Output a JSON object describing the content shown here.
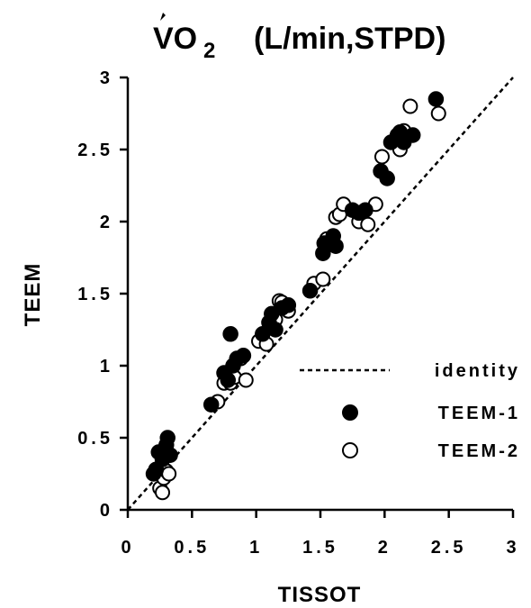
{
  "chart_data": {
    "type": "scatter",
    "title": "VO",
    "title_subscript": "2",
    "title_units": "(L/min,STPD)",
    "xlabel": "TISSOT",
    "ylabel": "TEEM",
    "xlim": [
      0,
      3
    ],
    "ylim": [
      0,
      3
    ],
    "x_ticks": [
      0,
      0.5,
      1,
      1.5,
      2,
      2.5,
      3
    ],
    "y_ticks": [
      0,
      0.5,
      1,
      1.5,
      2,
      2.5,
      3
    ],
    "x_tick_labels": [
      "0",
      "0.5",
      "1",
      "1.5",
      "2",
      "2.5",
      "3"
    ],
    "y_tick_labels": [
      "0",
      "0.5",
      "1",
      "1.5",
      "2",
      "2.5",
      "3"
    ],
    "grid": false,
    "legend_position": "bottom-right",
    "reference_line": {
      "name": "identity",
      "style": "dashed",
      "x": [
        0,
        3
      ],
      "y": [
        0,
        3
      ]
    },
    "series": [
      {
        "name": "TEEM-1",
        "marker": "filled-circle",
        "points": [
          [
            0.2,
            0.25
          ],
          [
            0.22,
            0.28
          ],
          [
            0.24,
            0.4
          ],
          [
            0.27,
            0.35
          ],
          [
            0.3,
            0.45
          ],
          [
            0.31,
            0.5
          ],
          [
            0.33,
            0.38
          ],
          [
            0.65,
            0.73
          ],
          [
            0.75,
            0.95
          ],
          [
            0.78,
            0.9
          ],
          [
            0.8,
            1.22
          ],
          [
            0.82,
            1.0
          ],
          [
            0.85,
            1.05
          ],
          [
            0.9,
            1.07
          ],
          [
            1.05,
            1.22
          ],
          [
            1.1,
            1.3
          ],
          [
            1.12,
            1.36
          ],
          [
            1.15,
            1.25
          ],
          [
            1.2,
            1.4
          ],
          [
            1.25,
            1.42
          ],
          [
            1.42,
            1.52
          ],
          [
            1.52,
            1.78
          ],
          [
            1.53,
            1.85
          ],
          [
            1.6,
            1.9
          ],
          [
            1.62,
            1.83
          ],
          [
            1.75,
            2.08
          ],
          [
            1.8,
            2.06
          ],
          [
            1.85,
            2.08
          ],
          [
            1.97,
            2.35
          ],
          [
            2.02,
            2.3
          ],
          [
            2.05,
            2.55
          ],
          [
            2.1,
            2.6
          ],
          [
            2.12,
            2.62
          ],
          [
            2.15,
            2.55
          ],
          [
            2.22,
            2.6
          ],
          [
            2.4,
            2.85
          ]
        ]
      },
      {
        "name": "TEEM-2",
        "marker": "open-circle",
        "points": [
          [
            0.25,
            0.15
          ],
          [
            0.27,
            0.12
          ],
          [
            0.28,
            0.22
          ],
          [
            0.3,
            0.27
          ],
          [
            0.32,
            0.25
          ],
          [
            0.7,
            0.75
          ],
          [
            0.75,
            0.88
          ],
          [
            0.8,
            0.88
          ],
          [
            0.83,
            0.92
          ],
          [
            0.88,
            1.05
          ],
          [
            0.92,
            0.9
          ],
          [
            1.02,
            1.17
          ],
          [
            1.08,
            1.15
          ],
          [
            1.15,
            1.32
          ],
          [
            1.18,
            1.45
          ],
          [
            1.2,
            1.44
          ],
          [
            1.25,
            1.38
          ],
          [
            1.45,
            1.57
          ],
          [
            1.52,
            1.6
          ],
          [
            1.55,
            1.88
          ],
          [
            1.62,
            2.03
          ],
          [
            1.65,
            2.05
          ],
          [
            1.68,
            2.12
          ],
          [
            1.8,
            2.0
          ],
          [
            1.87,
            1.98
          ],
          [
            1.93,
            2.12
          ],
          [
            1.98,
            2.45
          ],
          [
            2.12,
            2.5
          ],
          [
            2.14,
            2.58
          ],
          [
            2.15,
            2.63
          ],
          [
            2.2,
            2.8
          ],
          [
            2.42,
            2.75
          ]
        ]
      }
    ]
  }
}
